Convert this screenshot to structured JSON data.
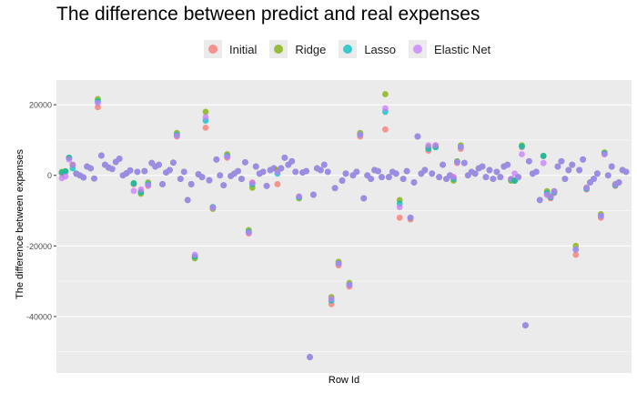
{
  "chart_data": {
    "type": "scatter",
    "title": "The difference between predict and real expenses",
    "xlabel": "Row Id",
    "ylabel": "The difference between expenses",
    "ylim": [
      -56000,
      27000
    ],
    "yticks": [
      20000,
      0,
      -20000,
      -40000
    ],
    "ytick_labels": [
      "20000",
      "0",
      "-20000",
      "-40000"
    ],
    "grid": true,
    "legend_position": "top",
    "series": [
      {
        "name": "Initial",
        "color": "#F8766D"
      },
      {
        "name": "Ridge",
        "color": "#7CAE00"
      },
      {
        "name": "Lasso",
        "color": "#00BFC4"
      },
      {
        "name": "Elastic Net",
        "color": "#C77CFF"
      }
    ],
    "values": [
      [
        0,
        500,
        1000,
        800,
        -800
      ],
      [
        1,
        1000,
        1200,
        1100,
        -300
      ],
      [
        2,
        5000,
        5000,
        5000,
        4500
      ],
      [
        3,
        3000,
        3000,
        2000,
        3000
      ],
      [
        4,
        500,
        500,
        500,
        400
      ],
      [
        5,
        0,
        0,
        0,
        0
      ],
      [
        6,
        -600,
        -600,
        -600,
        -600
      ],
      [
        7,
        2500,
        2500,
        2500,
        2500
      ],
      [
        8,
        2000,
        2000,
        2000,
        2000
      ],
      [
        9,
        -900,
        -900,
        -900,
        -900
      ],
      [
        10,
        19300,
        21600,
        21000,
        20500
      ],
      [
        11,
        5600,
        5600,
        5600,
        5600
      ],
      [
        12,
        3000,
        3000,
        3000,
        3000
      ],
      [
        13,
        2200,
        2200,
        2200,
        2200
      ],
      [
        14,
        1800,
        1800,
        1800,
        1800
      ],
      [
        15,
        3800,
        3800,
        3800,
        3800
      ],
      [
        16,
        4700,
        4700,
        4700,
        4700
      ],
      [
        17,
        0,
        0,
        0,
        0
      ],
      [
        18,
        600,
        600,
        600,
        600
      ],
      [
        19,
        1400,
        1400,
        1400,
        1400
      ],
      [
        20,
        -2500,
        -2200,
        -2300,
        -4400
      ],
      [
        21,
        1000,
        1000,
        1000,
        1000
      ],
      [
        22,
        -4600,
        -5200,
        -4800,
        -4000
      ],
      [
        23,
        1200,
        1200,
        1200,
        1200
      ],
      [
        24,
        -3000,
        -2000,
        -2500,
        -2800
      ],
      [
        25,
        3500,
        3500,
        3500,
        3500
      ],
      [
        26,
        2500,
        2500,
        2500,
        2500
      ],
      [
        27,
        3000,
        3000,
        3000,
        3000
      ],
      [
        28,
        -2500,
        -2500,
        -2500,
        -2500
      ],
      [
        29,
        800,
        800,
        800,
        800
      ],
      [
        30,
        1500,
        1500,
        1500,
        1500
      ],
      [
        31,
        3600,
        3600,
        3600,
        3600
      ],
      [
        32,
        11000,
        12000,
        11500,
        11200
      ],
      [
        33,
        -1000,
        -1000,
        -1000,
        -1000
      ],
      [
        34,
        1000,
        1000,
        1000,
        1000
      ],
      [
        35,
        -7000,
        -7000,
        -7000,
        -7000
      ],
      [
        36,
        -2500,
        -2500,
        -2500,
        -2500
      ],
      [
        37,
        -23000,
        -23500,
        -23000,
        -22500
      ],
      [
        38,
        300,
        300,
        300,
        300
      ],
      [
        39,
        -500,
        -500,
        -500,
        -500
      ],
      [
        40,
        13500,
        18000,
        15500,
        16500
      ],
      [
        41,
        -1400,
        -1400,
        -1400,
        -1400
      ],
      [
        42,
        -9000,
        -9500,
        -9000,
        -9200
      ],
      [
        43,
        4500,
        4500,
        4500,
        4500
      ],
      [
        44,
        0,
        0,
        0,
        0
      ],
      [
        45,
        -2800,
        -2800,
        -2800,
        -2800
      ],
      [
        46,
        5000,
        6000,
        5500,
        5300
      ],
      [
        47,
        -200,
        -200,
        -200,
        -200
      ],
      [
        48,
        500,
        500,
        500,
        500
      ],
      [
        49,
        1200,
        1200,
        1200,
        1200
      ],
      [
        50,
        -1000,
        -1000,
        -1000,
        -1000
      ],
      [
        51,
        3700,
        3700,
        3700,
        3700
      ],
      [
        52,
        -16500,
        -15500,
        -16000,
        -16200
      ],
      [
        53,
        -2000,
        -3500,
        -2500,
        -2200
      ],
      [
        54,
        2500,
        2500,
        2500,
        2500
      ],
      [
        55,
        500,
        500,
        500,
        500
      ],
      [
        56,
        1000,
        1000,
        1000,
        1000
      ],
      [
        57,
        -3000,
        -3000,
        -3000,
        -3000
      ],
      [
        58,
        1500,
        1500,
        1500,
        1500
      ],
      [
        59,
        2000,
        2000,
        2000,
        2000
      ],
      [
        60,
        -2500,
        1500,
        500,
        1000
      ],
      [
        61,
        2000,
        2000,
        2000,
        2000
      ],
      [
        62,
        5000,
        5000,
        5000,
        5000
      ],
      [
        63,
        3000,
        3000,
        3000,
        3000
      ],
      [
        64,
        4000,
        4000,
        4000,
        4000
      ],
      [
        65,
        1000,
        1000,
        1000,
        1000
      ],
      [
        66,
        -6000,
        -6500,
        -6200,
        -6000
      ],
      [
        67,
        800,
        800,
        800,
        800
      ],
      [
        68,
        1200,
        1200,
        1200,
        1200
      ],
      [
        69,
        -51500,
        -51500,
        -51500,
        -51500
      ],
      [
        70,
        -5500,
        -5500,
        -5500,
        -5500
      ],
      [
        71,
        2000,
        2000,
        2000,
        2000
      ],
      [
        72,
        1500,
        1500,
        1500,
        1500
      ],
      [
        73,
        3000,
        3000,
        3000,
        3000
      ],
      [
        74,
        1000,
        1000,
        1000,
        1000
      ],
      [
        75,
        -36500,
        -34500,
        -35500,
        -35000
      ],
      [
        76,
        -3600,
        -3600,
        -3600,
        -3600
      ],
      [
        77,
        -25500,
        -24500,
        -25000,
        -25000
      ],
      [
        78,
        -1500,
        -1500,
        -1500,
        -1500
      ],
      [
        79,
        500,
        500,
        500,
        500
      ],
      [
        80,
        -31500,
        -30500,
        -31000,
        -31000
      ],
      [
        81,
        0,
        0,
        0,
        0
      ],
      [
        82,
        1000,
        1000,
        1000,
        1000
      ],
      [
        83,
        11000,
        12000,
        11500,
        11500
      ],
      [
        84,
        -6500,
        -6500,
        -6500,
        -6500
      ],
      [
        85,
        0,
        0,
        0,
        0
      ],
      [
        86,
        -1000,
        -1000,
        -1000,
        -1000
      ],
      [
        87,
        1500,
        1500,
        1500,
        1500
      ],
      [
        88,
        1200,
        1200,
        1200,
        1200
      ],
      [
        89,
        -500,
        -500,
        -500,
        -500
      ],
      [
        90,
        13000,
        23000,
        18000,
        19000
      ],
      [
        91,
        -500,
        -500,
        -500,
        -500
      ],
      [
        92,
        1000,
        1000,
        1000,
        1000
      ],
      [
        93,
        500,
        500,
        500,
        500
      ],
      [
        94,
        -12000,
        -7000,
        -8000,
        -9000
      ],
      [
        95,
        -1000,
        -1000,
        -1000,
        -1000
      ],
      [
        96,
        1200,
        1200,
        1200,
        1200
      ],
      [
        97,
        -12500,
        -12000,
        -12000,
        -12000
      ],
      [
        98,
        -2000,
        -2000,
        -2000,
        -2000
      ],
      [
        99,
        11000,
        11000,
        11000,
        11000
      ],
      [
        100,
        500,
        500,
        500,
        500
      ],
      [
        101,
        1500,
        1500,
        1500,
        1500
      ],
      [
        102,
        7000,
        8000,
        7500,
        8500
      ],
      [
        103,
        500,
        500,
        500,
        500
      ],
      [
        104,
        8500,
        8000,
        8000,
        8500
      ],
      [
        105,
        -500,
        -500,
        -500,
        -500
      ],
      [
        106,
        3000,
        3000,
        3000,
        3000
      ],
      [
        107,
        -1000,
        -1000,
        -1000,
        -1000
      ],
      [
        108,
        0,
        0,
        0,
        0
      ],
      [
        109,
        -500,
        -1500,
        -1000,
        -500
      ],
      [
        110,
        3500,
        4000,
        3800,
        3700
      ],
      [
        111,
        7500,
        8500,
        8000,
        8000
      ],
      [
        112,
        3500,
        3500,
        3500,
        3500
      ],
      [
        113,
        0,
        0,
        0,
        0
      ],
      [
        114,
        1000,
        1000,
        1000,
        1000
      ],
      [
        115,
        500,
        500,
        500,
        500
      ],
      [
        116,
        2000,
        2000,
        2000,
        2000
      ],
      [
        117,
        2500,
        2500,
        2500,
        2500
      ],
      [
        118,
        -500,
        -500,
        -500,
        -500
      ],
      [
        119,
        1500,
        1500,
        1500,
        1500
      ],
      [
        120,
        -1000,
        -1000,
        -1000,
        -1000
      ],
      [
        121,
        1000,
        1000,
        1000,
        1000
      ],
      [
        122,
        -500,
        -500,
        -500,
        -500
      ],
      [
        123,
        2500,
        2500,
        2500,
        2500
      ],
      [
        124,
        3000,
        3000,
        3000,
        3000
      ],
      [
        125,
        -1000,
        -1500,
        -1200,
        -1000
      ],
      [
        126,
        -1500,
        -1500,
        -1500,
        500
      ],
      [
        127,
        -500,
        -500,
        -500,
        -500
      ],
      [
        128,
        8000,
        8500,
        8200,
        6000
      ],
      [
        129,
        -42500,
        -42500,
        -42500,
        -42500
      ],
      [
        130,
        4000,
        4000,
        4000,
        4000
      ],
      [
        131,
        500,
        500,
        500,
        500
      ],
      [
        132,
        1000,
        1000,
        1000,
        1000
      ],
      [
        133,
        -7000,
        -7000,
        -7000,
        -7000
      ],
      [
        134,
        5500,
        5500,
        5500,
        3500
      ],
      [
        135,
        -5500,
        -4500,
        -5000,
        -5500
      ],
      [
        136,
        -6500,
        -6000,
        -6200,
        -6000
      ],
      [
        137,
        -5000,
        -4500,
        -4800,
        -4500
      ],
      [
        138,
        2500,
        2500,
        2500,
        2500
      ],
      [
        139,
        4000,
        4000,
        4000,
        4000
      ],
      [
        140,
        -1000,
        -1000,
        -1000,
        -1000
      ],
      [
        141,
        1500,
        1500,
        1500,
        1500
      ],
      [
        142,
        3000,
        3000,
        3000,
        3000
      ],
      [
        143,
        -22500,
        -20000,
        -21000,
        -21000
      ],
      [
        144,
        1500,
        1500,
        1500,
        1500
      ],
      [
        145,
        4500,
        4500,
        4500,
        4500
      ],
      [
        146,
        -4000,
        -3500,
        -3800,
        -3500
      ],
      [
        147,
        -2000,
        -2000,
        -2000,
        -2000
      ],
      [
        148,
        -1000,
        -1000,
        -1000,
        -1000
      ],
      [
        149,
        500,
        500,
        500,
        500
      ],
      [
        150,
        -12000,
        -11000,
        -11500,
        -11500
      ],
      [
        151,
        6000,
        6500,
        6200,
        6000
      ],
      [
        152,
        0,
        0,
        0,
        0
      ],
      [
        153,
        2500,
        2500,
        2500,
        2500
      ],
      [
        154,
        -3000,
        -2500,
        -2800,
        -2500
      ],
      [
        155,
        -2000,
        -2000,
        -2000,
        -2000
      ],
      [
        156,
        1500,
        1500,
        1500,
        1500
      ],
      [
        157,
        1000,
        1000,
        1000,
        1000
      ]
    ]
  }
}
